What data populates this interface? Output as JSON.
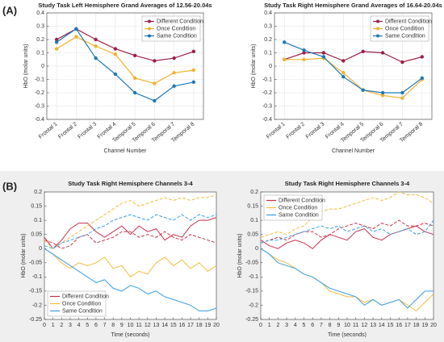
{
  "panel_labels": [
    "(A)",
    "(B)"
  ],
  "chart_data": [
    {
      "type": "line",
      "title": "Study Task Left Hemisphere Grand Averages of 12.56-20.04s",
      "x_label": "Channel Number",
      "y_label": "HbO (molar units)",
      "categories": [
        "Frontal 1",
        "Frontal 2",
        "Frontal 3",
        "Frontal 4",
        "Temporal 5",
        "Temporal 6",
        "Temporal 7",
        "Temporal 8"
      ],
      "ylim": [
        -0.4,
        0.4
      ],
      "yticks": [
        -0.4,
        -0.3,
        -0.2,
        -0.1,
        0,
        0.1,
        0.2,
        0.3,
        0.4
      ],
      "grid": true,
      "legend": "upper right",
      "series": [
        {
          "name": "Different Condition",
          "color": "#9e1f45",
          "values": [
            0.2,
            0.28,
            0.2,
            0.13,
            0.08,
            0.04,
            0.06,
            0.11
          ]
        },
        {
          "name": "Once Condition",
          "color": "#f0b22e",
          "values": [
            0.13,
            0.22,
            0.15,
            0.09,
            -0.09,
            -0.13,
            -0.05,
            -0.03
          ]
        },
        {
          "name": "Same Condition",
          "color": "#1e78b4",
          "values": [
            0.18,
            0.28,
            0.06,
            -0.06,
            -0.2,
            -0.26,
            -0.15,
            -0.12
          ]
        }
      ]
    },
    {
      "type": "line",
      "title": "Study Task Right Hemisphere Grand Averages of 16.64-20.04s",
      "x_label": "Channel Number",
      "y_label": "HbO (molar units)",
      "categories": [
        "Frontal 1",
        "Frontal 2",
        "Frontal 3",
        "Frontal 4",
        "Temporal 5",
        "Temporal 6",
        "Temporal 7",
        "Temporal 8"
      ],
      "ylim": [
        -0.4,
        0.4
      ],
      "yticks": [
        -0.4,
        -0.3,
        -0.2,
        -0.1,
        0,
        0.1,
        0.2,
        0.3,
        0.4
      ],
      "grid": true,
      "legend": "upper right",
      "series": [
        {
          "name": "Different Condition",
          "color": "#9e1f45",
          "values": [
            0.05,
            0.1,
            0.1,
            0.04,
            0.11,
            0.1,
            0.03,
            0.07
          ]
        },
        {
          "name": "Once Condition",
          "color": "#f0b22e",
          "values": [
            0.05,
            0.05,
            0.06,
            -0.05,
            -0.18,
            -0.22,
            -0.24,
            -0.1
          ]
        },
        {
          "name": "Same Condition",
          "color": "#1e78b4",
          "values": [
            0.18,
            0.12,
            0.07,
            -0.08,
            -0.18,
            -0.2,
            -0.2,
            -0.09
          ]
        }
      ]
    },
    {
      "type": "line",
      "title": "Study Task Right Hemisphere Channels 3-4",
      "x_label": "Time (seconds)",
      "y_label": "HbO (molar units)",
      "x": [
        0,
        1,
        2,
        3,
        4,
        5,
        6,
        7,
        8,
        9,
        10,
        11,
        12,
        13,
        14,
        15,
        16,
        17,
        18,
        19,
        20
      ],
      "xlim": [
        0,
        20
      ],
      "xticks": [
        0,
        1,
        2,
        3,
        4,
        5,
        6,
        7,
        8,
        9,
        10,
        11,
        12,
        13,
        14,
        15,
        16,
        17,
        18,
        19,
        20
      ],
      "ylim": [
        -0.25,
        0.2
      ],
      "yticks": [
        -0.25,
        -0.2,
        -0.15,
        -0.1,
        -0.05,
        0,
        0.05,
        0.1,
        0.15,
        0.2
      ],
      "grid": false,
      "legend": "lower left",
      "series": [
        {
          "name": "Different Condition",
          "color": "#c8304a",
          "values": [
            0.04,
            0.0,
            0.03,
            0.07,
            0.09,
            0.09,
            0.06,
            0.04,
            0.06,
            0.08,
            0.05,
            0.08,
            0.06,
            0.07,
            0.03,
            0.05,
            0.04,
            0.08,
            0.1,
            0.1,
            0.11
          ],
          "dashed_values": [
            0.03,
            0.02,
            0.0,
            0.01,
            0.04,
            0.05,
            0.02,
            0.03,
            0.04,
            0.06,
            0.06,
            0.04,
            0.05,
            0.04,
            0.06,
            0.04,
            0.03,
            0.05,
            0.04,
            0.03,
            0.02
          ]
        },
        {
          "name": "Once Condition",
          "color": "#f3bc3e",
          "values": [
            0.0,
            -0.02,
            -0.05,
            -0.07,
            -0.05,
            -0.06,
            -0.05,
            -0.03,
            -0.07,
            -0.06,
            -0.1,
            -0.08,
            -0.09,
            -0.05,
            -0.03,
            -0.06,
            -0.04,
            -0.07,
            -0.05,
            -0.08,
            -0.06
          ],
          "dashed_values": [
            0.03,
            0.0,
            0.02,
            0.04,
            0.06,
            0.08,
            0.1,
            0.12,
            0.14,
            0.16,
            0.17,
            0.15,
            0.16,
            0.17,
            0.18,
            0.17,
            0.18,
            0.17,
            0.18,
            0.18,
            0.19
          ]
        },
        {
          "name": "Same Condition",
          "color": "#3a9fe6",
          "values": [
            0.0,
            -0.02,
            -0.04,
            -0.06,
            -0.08,
            -0.1,
            -0.12,
            -0.11,
            -0.14,
            -0.15,
            -0.13,
            -0.14,
            -0.16,
            -0.15,
            -0.17,
            -0.18,
            -0.19,
            -0.2,
            -0.22,
            -0.22,
            -0.21
          ],
          "dashed_values": [
            0.01,
            0.0,
            0.02,
            0.03,
            0.04,
            0.05,
            0.07,
            0.08,
            0.1,
            0.11,
            0.12,
            0.11,
            0.1,
            0.12,
            0.11,
            0.1,
            0.12,
            0.1,
            0.12,
            0.11,
            0.12
          ]
        }
      ]
    },
    {
      "type": "line",
      "title": "Study Task Right Hemisphere Channels 3-4",
      "x_label": "Time (seconds)",
      "y_label": "HbO (molar units)",
      "x": [
        0,
        1,
        2,
        3,
        4,
        5,
        6,
        7,
        8,
        9,
        10,
        11,
        12,
        13,
        14,
        15,
        16,
        17,
        18,
        19,
        20
      ],
      "xlim": [
        0,
        20
      ],
      "xticks": [
        0,
        1,
        2,
        3,
        4,
        5,
        6,
        7,
        8,
        9,
        10,
        11,
        12,
        13,
        14,
        15,
        16,
        17,
        18,
        19,
        20
      ],
      "ylim": [
        -0.25,
        0.2
      ],
      "yticks": [
        -0.25,
        -0.2,
        -0.15,
        -0.1,
        -0.05,
        0,
        0.05,
        0.1,
        0.15,
        0.2
      ],
      "grid": false,
      "legend": "upper left",
      "series": [
        {
          "name": "Different Condition",
          "color": "#c8304a",
          "values": [
            0.03,
            0.01,
            0.0,
            0.02,
            0.03,
            0.02,
            0.0,
            0.03,
            0.05,
            0.04,
            0.03,
            0.06,
            0.07,
            0.04,
            0.03,
            0.05,
            0.06,
            0.07,
            0.08,
            0.06,
            0.05
          ],
          "dashed_values": [
            0.02,
            0.03,
            0.04,
            0.03,
            0.05,
            0.06,
            0.06,
            0.04,
            0.05,
            0.07,
            0.08,
            0.09,
            0.08,
            0.07,
            0.09,
            0.08,
            0.1,
            0.08,
            0.08,
            0.09,
            0.08
          ]
        },
        {
          "name": "Once Condition",
          "color": "#f3bc3e",
          "values": [
            0.0,
            -0.02,
            -0.04,
            -0.05,
            -0.07,
            -0.09,
            -0.1,
            -0.12,
            -0.15,
            -0.16,
            -0.17,
            -0.17,
            -0.19,
            -0.18,
            -0.2,
            -0.19,
            -0.18,
            -0.2,
            -0.22,
            -0.19,
            -0.16
          ],
          "dashed_values": [
            0.04,
            0.05,
            0.06,
            0.05,
            0.07,
            0.08,
            0.11,
            0.13,
            0.14,
            0.14,
            0.15,
            0.16,
            0.17,
            0.18,
            0.17,
            0.18,
            0.2,
            0.19,
            0.19,
            0.18,
            0.16
          ]
        },
        {
          "name": "Same Condition",
          "color": "#3a9fe6",
          "values": [
            0.0,
            -0.02,
            -0.05,
            -0.06,
            -0.07,
            -0.09,
            -0.1,
            -0.12,
            -0.14,
            -0.15,
            -0.16,
            -0.17,
            -0.2,
            -0.18,
            -0.2,
            -0.19,
            -0.18,
            -0.21,
            -0.18,
            -0.15,
            -0.15
          ],
          "dashed_values": [
            0.02,
            0.03,
            0.03,
            0.04,
            0.05,
            0.06,
            0.07,
            0.08,
            0.07,
            0.08,
            0.06,
            0.07,
            0.08,
            0.06,
            0.07,
            0.05,
            0.06,
            0.07,
            0.05,
            0.06,
            0.1
          ]
        }
      ]
    }
  ]
}
